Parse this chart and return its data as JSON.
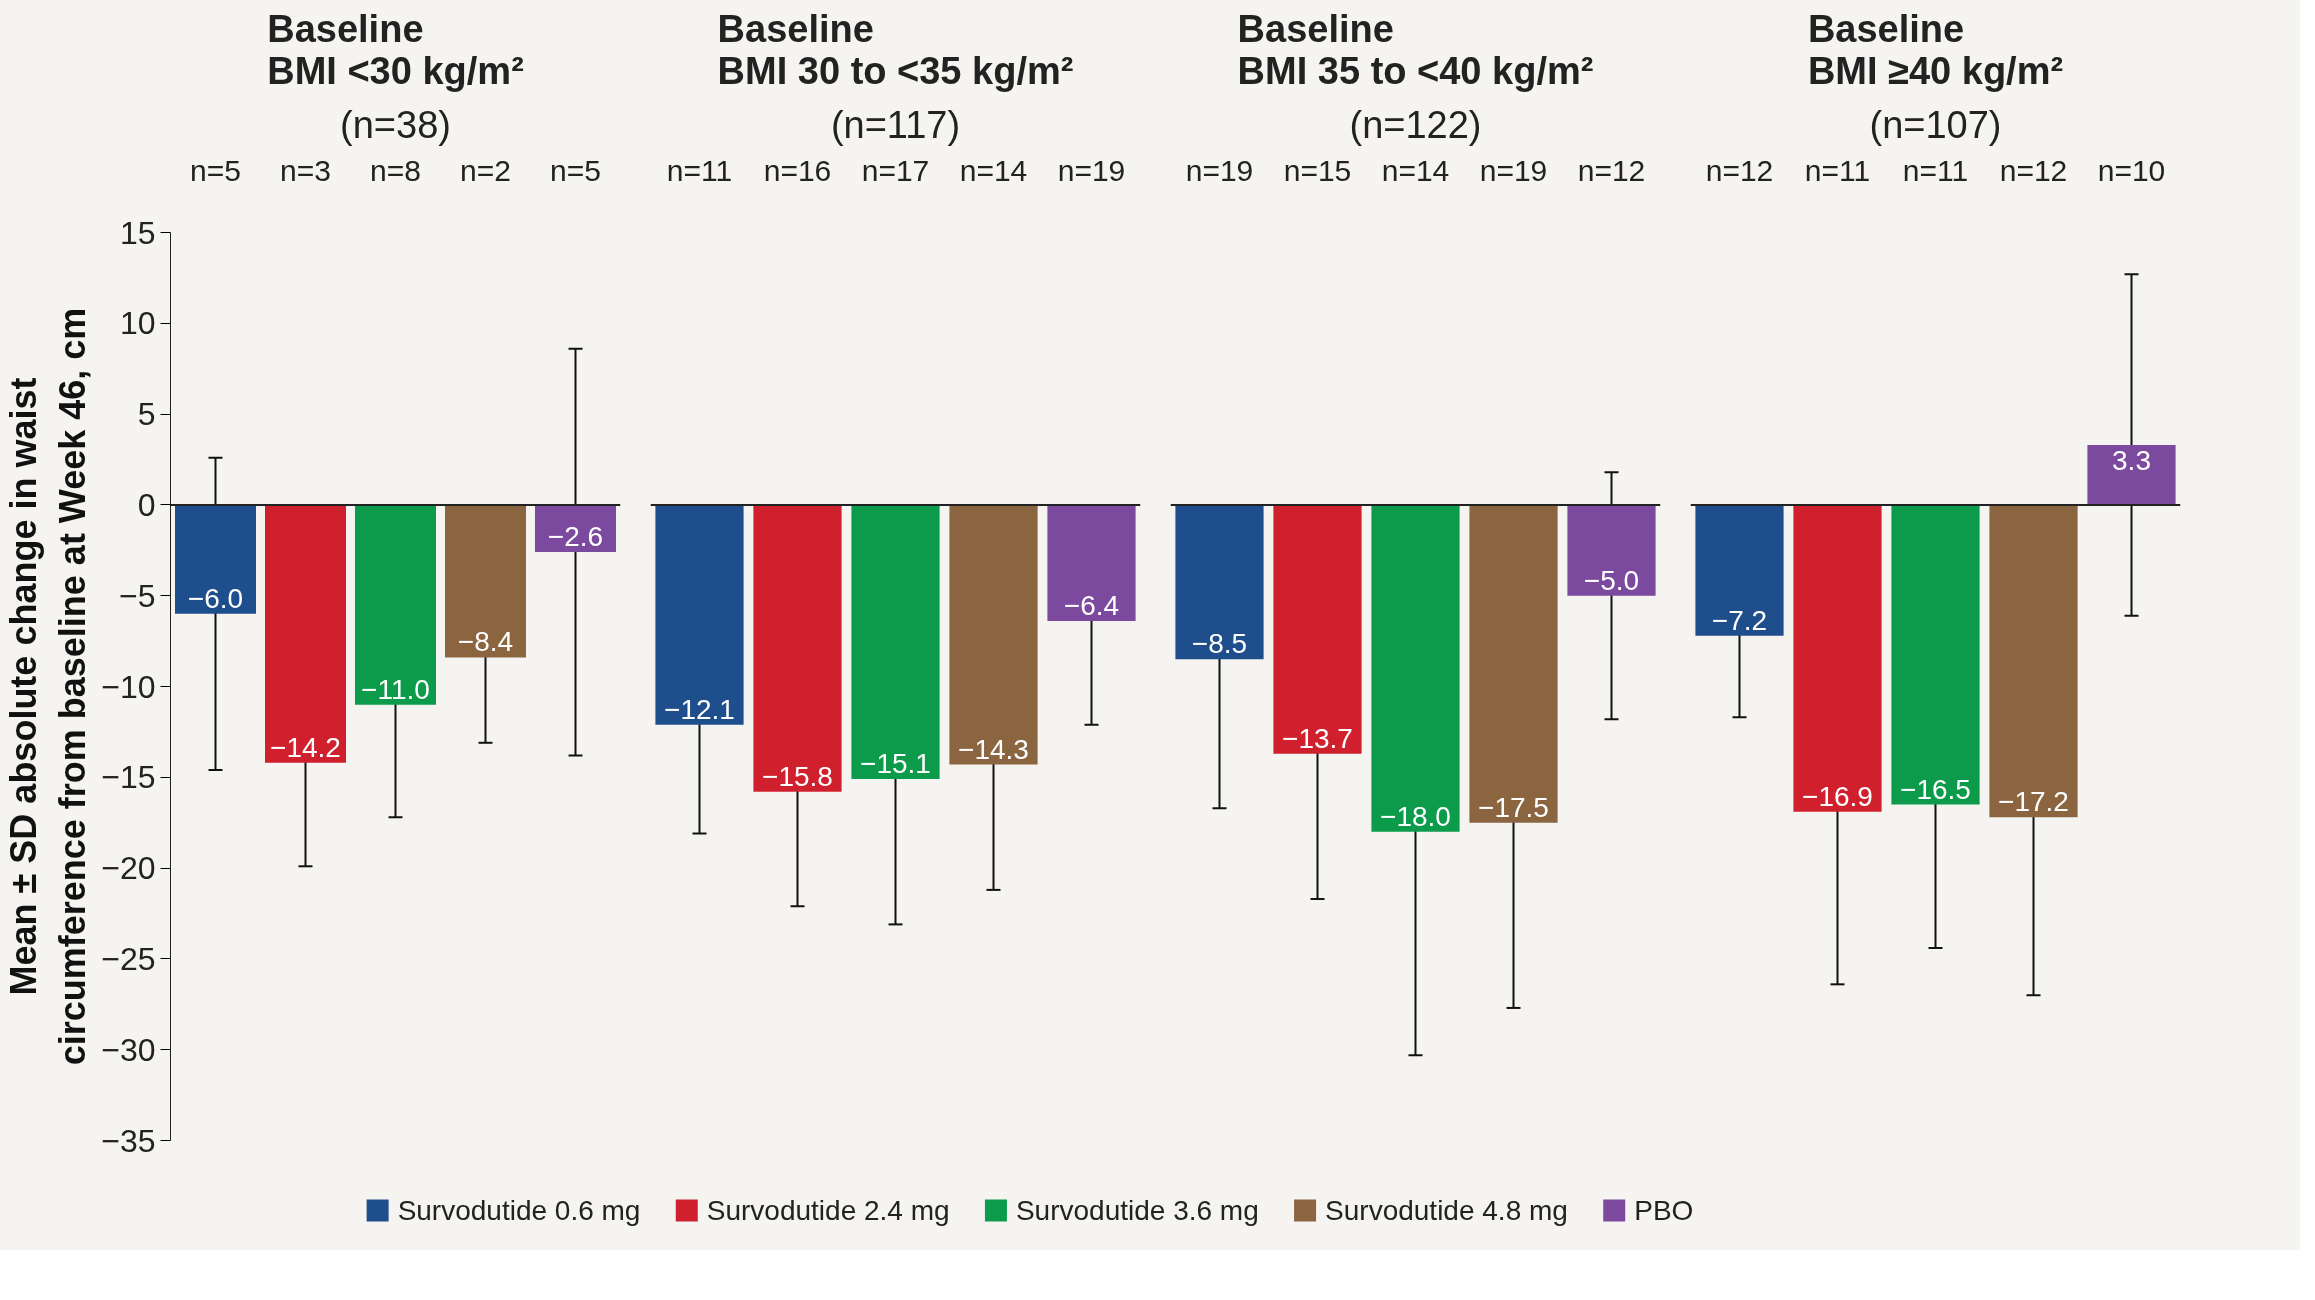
{
  "chart_data": [
    {
      "type": "bar",
      "title": "Baseline\nBMI <30 kg/m²",
      "subtitle": "(n=38)",
      "ylabel": "Mean ± SD absolute change in waist\ncircumference from baseline at Week 46, cm",
      "categories": [
        "n=5",
        "n=3",
        "n=8",
        "n=2",
        "n=5"
      ],
      "ylim": [
        -35,
        15
      ],
      "yticks": [
        -35,
        -30,
        -25,
        -20,
        -15,
        -10,
        -5,
        0,
        5,
        10,
        15
      ],
      "legend": "bottom",
      "series": [
        {
          "name": "Survodutide 0.6 mg",
          "color": "#1f4e8c",
          "values": [
            -6.0,
            null,
            null,
            null,
            null
          ],
          "errors": [
            8.6,
            null,
            null,
            null,
            null
          ],
          "value_labels": [
            "−6.0",
            null,
            null,
            null,
            null
          ]
        },
        {
          "name": "Survodutide 2.4 mg",
          "color": "#d0202e",
          "values": [
            null,
            -14.2,
            null,
            null,
            null
          ],
          "errors": [
            null,
            5.7,
            null,
            null,
            null
          ],
          "value_labels": [
            null,
            "−14.2",
            null,
            null,
            null
          ]
        },
        {
          "name": "Survodutide 3.6 mg",
          "color": "#0b9b4a",
          "values": [
            null,
            null,
            -11.0,
            null,
            null
          ],
          "errors": [
            null,
            null,
            6.2,
            null,
            null
          ],
          "value_labels": [
            null,
            null,
            "−11.0",
            null,
            null
          ]
        },
        {
          "name": "Survodutide 4.8 mg",
          "color": "#8b6540",
          "values": [
            null,
            null,
            null,
            -8.4,
            null
          ],
          "errors": [
            null,
            null,
            null,
            4.7,
            null
          ],
          "value_labels": [
            null,
            null,
            null,
            "−8.4",
            null
          ]
        },
        {
          "name": "PBO",
          "color": "#7b4a9e",
          "values": [
            null,
            null,
            null,
            null,
            -2.6
          ],
          "errors": [
            null,
            null,
            null,
            null,
            11.2
          ],
          "value_labels": [
            null,
            null,
            null,
            null,
            "−2.6"
          ]
        }
      ]
    },
    {
      "type": "bar",
      "title": "Baseline\nBMI 30 to <35 kg/m²",
      "subtitle": "(n=117)",
      "categories": [
        "n=11",
        "n=16",
        "n=17",
        "n=14",
        "n=19"
      ],
      "ylim": [
        -35,
        15
      ],
      "yticks": [
        -35,
        -30,
        -25,
        -20,
        -15,
        -10,
        -5,
        0,
        5,
        10,
        15
      ],
      "tick_labels": "x",
      "series": [
        {
          "color": "#1f4e8c",
          "values": [
            -12.1,
            null,
            null,
            null,
            null
          ],
          "errors": [
            6.0,
            null,
            null,
            null,
            null
          ],
          "value_labels": [
            "−12.1",
            null,
            null,
            null,
            null
          ]
        },
        {
          "color": "#d0202e",
          "values": [
            null,
            -15.8,
            null,
            null,
            null
          ],
          "errors": [
            null,
            6.3,
            null,
            null,
            null
          ],
          "value_labels": [
            null,
            "−15.8",
            null,
            null,
            null
          ]
        },
        {
          "color": "#0b9b4a",
          "values": [
            null,
            null,
            -15.1,
            null,
            null
          ],
          "errors": [
            null,
            null,
            8.0,
            null,
            null
          ],
          "value_labels": [
            null,
            null,
            "−15.1",
            null,
            null
          ]
        },
        {
          "color": "#8b6540",
          "values": [
            null,
            null,
            null,
            -14.3,
            null
          ],
          "errors": [
            null,
            null,
            null,
            6.9,
            null
          ],
          "value_labels": [
            null,
            null,
            null,
            "−14.3",
            null
          ]
        },
        {
          "color": "#7b4a9e",
          "values": [
            null,
            null,
            null,
            null,
            -6.4
          ],
          "errors": [
            null,
            null,
            null,
            null,
            5.7
          ],
          "value_labels": [
            null,
            null,
            null,
            null,
            "−6.4"
          ]
        }
      ]
    },
    {
      "type": "bar",
      "title": "Baseline\nBMI 35 to <40 kg/m²",
      "subtitle": "(n=122)",
      "categories": [
        "n=19",
        "n=15",
        "n=14",
        "n=19",
        "n=12"
      ],
      "ylim": [
        -35,
        15
      ],
      "yticks": [
        -35,
        -30,
        -25,
        -20,
        -15,
        -10,
        -5,
        0,
        5,
        10,
        15
      ],
      "tick_labels": "x",
      "series": [
        {
          "color": "#1f4e8c",
          "values": [
            -8.5,
            null,
            null,
            null,
            null
          ],
          "errors": [
            8.2,
            null,
            null,
            null,
            null
          ],
          "value_labels": [
            "−8.5",
            null,
            null,
            null,
            null
          ]
        },
        {
          "color": "#d0202e",
          "values": [
            null,
            -13.7,
            null,
            null,
            null
          ],
          "errors": [
            null,
            8.0,
            null,
            null,
            null
          ],
          "value_labels": [
            null,
            "−13.7",
            null,
            null,
            null
          ]
        },
        {
          "color": "#0b9b4a",
          "values": [
            null,
            null,
            -18.0,
            null,
            null
          ],
          "errors": [
            null,
            null,
            12.3,
            null,
            null
          ],
          "value_labels": [
            null,
            null,
            "−18.0",
            null,
            null
          ]
        },
        {
          "color": "#8b6540",
          "values": [
            null,
            null,
            null,
            -17.5,
            null
          ],
          "errors": [
            null,
            null,
            null,
            10.2,
            null
          ],
          "value_labels": [
            null,
            null,
            null,
            "−17.5",
            null
          ]
        },
        {
          "color": "#7b4a9e",
          "values": [
            null,
            null,
            null,
            null,
            -5.0
          ],
          "errors": [
            null,
            null,
            null,
            null,
            6.8
          ],
          "value_labels": [
            null,
            null,
            null,
            null,
            "−5.0"
          ]
        }
      ]
    },
    {
      "type": "bar",
      "title": "Baseline\nBMI ≥40 kg/m²",
      "subtitle": "(n=107)",
      "categories": [
        "n=12",
        "n=11",
        "n=11",
        "n=12",
        "n=10"
      ],
      "ylim": [
        -35,
        15
      ],
      "yticks": [
        -35,
        -30,
        -25,
        -20,
        -15,
        -10,
        -5,
        0,
        5,
        10,
        15
      ],
      "tick_labels": "x",
      "series": [
        {
          "color": "#1f4e8c",
          "values": [
            -7.2,
            null,
            null,
            null,
            null
          ],
          "errors": [
            4.5,
            null,
            null,
            null,
            null
          ],
          "value_labels": [
            "−7.2",
            null,
            null,
            null,
            null
          ]
        },
        {
          "color": "#d0202e",
          "values": [
            null,
            -16.9,
            null,
            null,
            null
          ],
          "errors": [
            null,
            9.5,
            null,
            null,
            null
          ],
          "value_labels": [
            null,
            "−16.9",
            null,
            null,
            null
          ]
        },
        {
          "color": "#0b9b4a",
          "values": [
            null,
            null,
            -16.5,
            null,
            null
          ],
          "errors": [
            null,
            null,
            7.9,
            null,
            null
          ],
          "value_labels": [
            null,
            null,
            "−16.5",
            null,
            null
          ]
        },
        {
          "color": "#8b6540",
          "values": [
            null,
            null,
            null,
            -17.2,
            null
          ],
          "errors": [
            null,
            null,
            null,
            9.8,
            null
          ],
          "value_labels": [
            null,
            null,
            null,
            "−17.2",
            null
          ]
        },
        {
          "color": "#7b4a9e",
          "values": [
            null,
            null,
            null,
            null,
            3.3
          ],
          "errors": [
            null,
            null,
            null,
            null,
            9.4
          ],
          "value_labels": [
            null,
            null,
            null,
            null,
            "3.3"
          ]
        }
      ]
    }
  ]
}
